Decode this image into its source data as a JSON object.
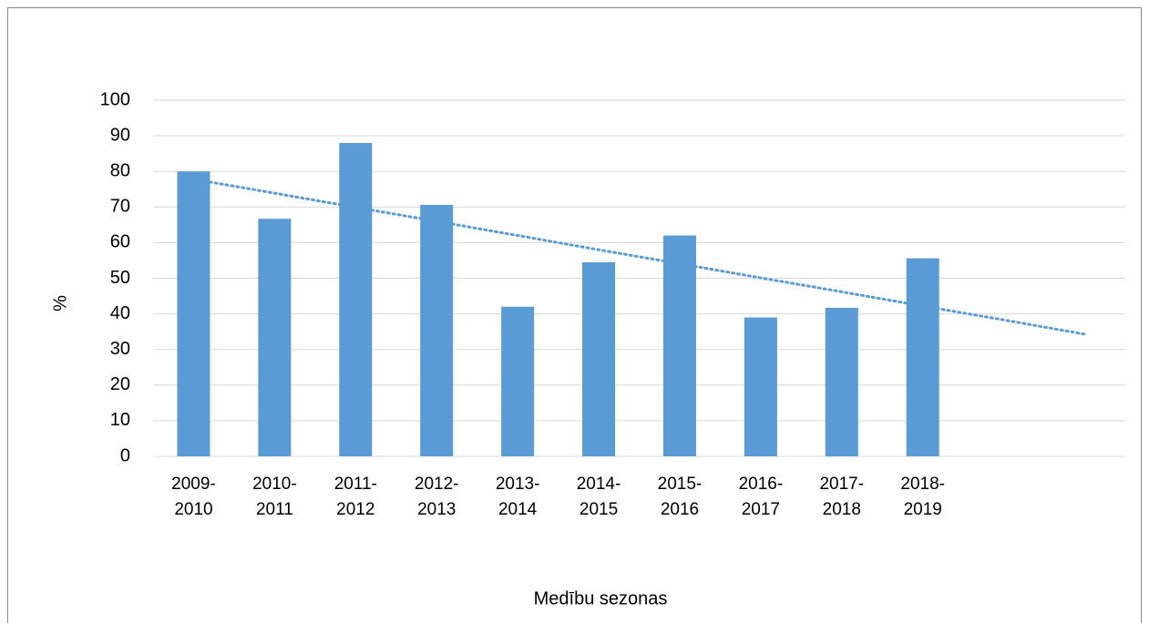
{
  "chart_data": {
    "type": "bar",
    "x_label": "Medību sezonas",
    "y_label": "%",
    "categories": [
      "2009-\n2010",
      "2010-\n2011",
      "2011-\n2012",
      "2012-\n2013",
      "2013-\n2014",
      "2014-\n2015",
      "2015-\n2016",
      "2016-\n2017",
      "2017-\n2018",
      "2018-\n2019",
      null,
      null
    ],
    "values": [
      80,
      66.7,
      88,
      70.6,
      42,
      54.5,
      62,
      39,
      41.7,
      55.6,
      null,
      null
    ],
    "color": "#5b9bd5",
    "trendline": {
      "color": "#5b9bd5",
      "style": "dotted",
      "values": [
        77.8,
        73.9,
        69.9,
        66.0,
        62.0,
        58.0,
        54.1,
        50.1,
        46.2,
        42.2,
        38.3,
        34.3
      ]
    },
    "ylim": [
      0,
      100
    ],
    "yticks": [
      0,
      10,
      20,
      30,
      40,
      50,
      60,
      70,
      80,
      90,
      100
    ],
    "grid": true
  }
}
